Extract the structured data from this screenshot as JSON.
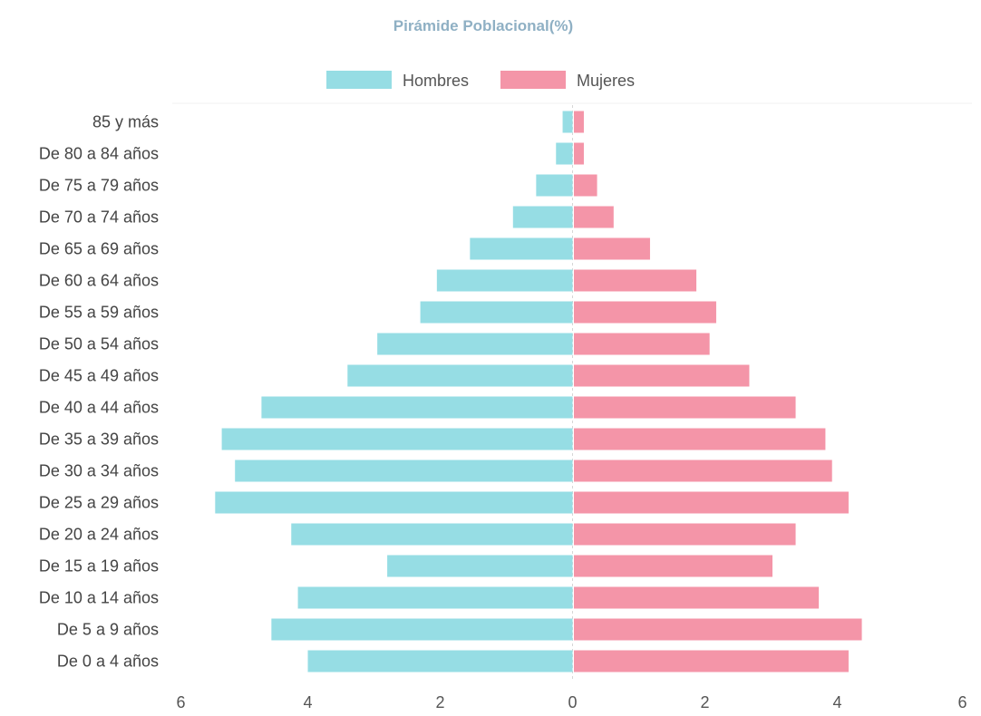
{
  "chart_data": {
    "type": "bar",
    "orientation": "horizontal",
    "title": "Pirámide Poblacional(%)",
    "categories": [
      "85 y más",
      "De 80 a 84 años",
      "De 75 a 79 años",
      "De 70 a 74 años",
      "De 65 a 69 años",
      "De 60 a 64 años",
      "De 55 a 59 años",
      "De 50 a 54 años",
      "De 45 a 49 años",
      "De 40 a 44 años",
      "De 35 a 39 años",
      "De 30 a 34 años",
      "De 25 a 29 años",
      "De 20 a 24 años",
      "De 15 a 19 años",
      "De 10 a 14 años",
      "De 5 a 9 años",
      "De 0 a 4 años"
    ],
    "series": [
      {
        "name": "Hombres",
        "color": "#96dde4",
        "values": [
          0.15,
          0.25,
          0.55,
          0.9,
          1.55,
          2.05,
          2.3,
          2.95,
          3.4,
          4.7,
          5.3,
          5.1,
          5.4,
          4.25,
          2.8,
          4.15,
          4.55,
          4.0
        ]
      },
      {
        "name": "Mujeres",
        "color": "#f495a8",
        "values": [
          0.15,
          0.15,
          0.35,
          0.6,
          1.15,
          1.85,
          2.15,
          2.05,
          2.65,
          3.35,
          3.8,
          3.9,
          4.15,
          3.35,
          3.0,
          3.7,
          4.35,
          4.15
        ]
      }
    ],
    "xlim": [
      -6,
      6
    ],
    "xticks": [
      -6,
      -4,
      -2,
      0,
      2,
      4,
      6
    ],
    "xtick_labels": [
      "6",
      "4",
      "2",
      "0",
      "2",
      "4",
      "6"
    ],
    "legend_position": "top",
    "grid": false,
    "colors": {
      "title": "#8fb0c4",
      "zero_line": "#d6d6d6"
    }
  }
}
